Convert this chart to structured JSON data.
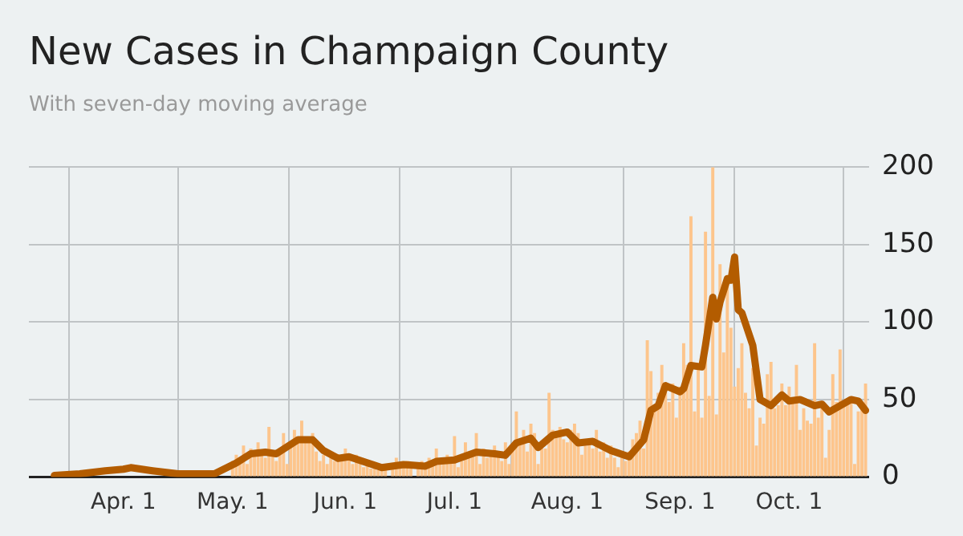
{
  "chart_data": {
    "type": "bar",
    "title": "New Cases in Champaign County",
    "subtitle": "With seven-day moving average",
    "x": [
      "--05-01",
      "--05-02",
      "--05-03",
      "--05-04",
      "--05-05",
      "--05-06",
      "--05-07",
      "--05-08",
      "--05-09",
      "--05-10",
      "--05-11",
      "--05-12",
      "--05-13",
      "--05-14",
      "--05-15",
      "--05-16",
      "--05-17",
      "--05-18",
      "--05-19",
      "--05-20",
      "--05-21",
      "--05-22",
      "--05-23",
      "--05-24",
      "--05-25",
      "--05-26",
      "--05-27",
      "--05-28",
      "--05-29",
      "--05-30",
      "--05-31",
      "--06-01",
      "--06-02",
      "--06-03",
      "--06-04",
      "--06-05",
      "--06-06",
      "--06-07",
      "--06-08",
      "--06-09",
      "--06-10",
      "--06-11",
      "--06-12",
      "--06-13",
      "--06-14",
      "--06-15",
      "--06-16",
      "--06-17",
      "--06-18",
      "--06-19",
      "--06-20",
      "--06-21",
      "--06-22",
      "--06-23",
      "--06-24",
      "--06-25",
      "--06-26",
      "--06-27",
      "--06-28",
      "--06-29",
      "--06-30",
      "--07-01",
      "--07-02",
      "--07-03",
      "--07-04",
      "--07-05",
      "--07-06",
      "--07-07",
      "--07-08",
      "--07-09",
      "--07-10",
      "--07-11",
      "--07-12",
      "--07-13",
      "--07-14",
      "--07-15",
      "--07-16",
      "--07-17",
      "--07-18",
      "--07-19",
      "--07-20",
      "--07-21",
      "--07-22",
      "--07-23",
      "--07-24",
      "--07-25",
      "--07-26",
      "--07-27",
      "--07-28",
      "--07-29",
      "--07-30",
      "--07-31",
      "--08-01",
      "--08-02",
      "--08-03",
      "--08-04",
      "--08-05",
      "--08-06",
      "--08-07",
      "--08-08",
      "--08-09",
      "--08-10",
      "--08-11",
      "--08-12",
      "--08-13",
      "--08-14",
      "--08-15",
      "--08-16",
      "--08-17",
      "--08-18",
      "--08-19",
      "--08-20",
      "--08-21",
      "--08-22",
      "--08-23",
      "--08-24",
      "--08-25",
      "--08-26",
      "--08-27",
      "--08-28",
      "--08-29",
      "--08-30",
      "--08-31",
      "--09-01",
      "--09-02",
      "--09-03",
      "--09-04",
      "--09-05",
      "--09-06",
      "--09-07",
      "--09-08",
      "--09-09",
      "--09-10",
      "--09-11",
      "--09-12",
      "--09-13",
      "--09-14",
      "--09-15",
      "--09-16",
      "--09-17",
      "--09-18",
      "--09-19",
      "--09-20",
      "--09-21",
      "--09-22",
      "--09-23",
      "--09-24",
      "--09-25",
      "--09-26",
      "--09-27",
      "--09-28",
      "--09-29",
      "--09-30",
      "--10-01",
      "--10-02",
      "--10-03",
      "--10-04",
      "--10-05",
      "--10-06",
      "--10-07",
      "--10-08",
      "--10-09",
      "--10-10",
      "--10-11",
      "--10-12",
      "--10-13",
      "--10-14",
      "--10-15",
      "--10-16",
      "--10-17",
      "--10-18",
      "--10-19",
      "--10-20",
      "--10-21",
      "--10-22"
    ],
    "series": [
      {
        "color": "#fdc58c",
        "values": [
          10,
          14,
          12,
          20,
          8,
          18,
          14,
          22,
          15,
          12,
          32,
          16,
          10,
          18,
          28,
          8,
          20,
          30,
          24,
          36,
          22,
          24,
          28,
          16,
          10,
          14,
          8,
          12,
          10,
          14,
          12,
          18,
          11,
          8,
          14,
          10,
          6,
          8,
          5,
          9,
          4,
          6,
          5,
          null,
          7,
          12,
          6,
          9,
          10,
          6,
          null,
          5,
          10,
          7,
          12,
          9,
          18,
          10,
          8,
          14,
          12,
          26,
          6,
          10,
          22,
          14,
          16,
          28,
          8,
          18,
          12,
          14,
          20,
          16,
          10,
          22,
          8,
          18,
          42,
          24,
          30,
          16,
          34,
          28,
          8,
          20,
          18,
          54,
          30,
          26,
          32,
          24,
          22,
          30,
          34,
          28,
          14,
          20,
          24,
          18,
          30,
          16,
          22,
          12,
          20,
          12,
          6,
          14,
          10,
          16,
          24,
          28,
          36,
          18,
          88,
          68,
          42,
          54,
          72,
          54,
          48,
          60,
          38,
          58,
          86,
          72,
          168,
          42,
          70,
          38,
          158,
          52,
          200,
          40,
          137,
          80,
          130,
          96,
          58,
          70,
          86,
          54,
          44,
          70,
          20,
          38,
          34,
          66,
          74,
          44,
          46,
          60,
          46,
          58,
          50,
          72,
          30,
          44,
          36,
          34,
          86,
          38,
          44,
          12,
          30,
          66,
          48,
          82,
          46,
          50,
          48,
          8,
          42,
          44,
          60
        ]
      },
      {
        "type": "line",
        "color": "#b35c00",
        "x": [
          "--03-13",
          "--03-20",
          "--03-27",
          "--04-01",
          "--04-03",
          "--04-09",
          "--04-16",
          "--04-26",
          "--05-02",
          "--05-06",
          "--05-10",
          "--05-13",
          "--05-19",
          "--05-23",
          "--05-26",
          "--05-30",
          "--06-02",
          "--06-11",
          "--06-17",
          "--06-23",
          "--06-26",
          "--07-01",
          "--07-07",
          "--07-12",
          "--07-15",
          "--07-18",
          "--07-22",
          "--07-24",
          "--07-28",
          "--08-01",
          "--08-04",
          "--08-08",
          "--08-13",
          "--08-18",
          "--08-22",
          "--08-24",
          "--08-26",
          "--08-28",
          "--09-01",
          "--09-02",
          "--09-04",
          "--09-07",
          "--09-08",
          "--09-10",
          "--09-11",
          "--09-12",
          "--09-14",
          "--09-15",
          "--09-16",
          "--09-17",
          "--09-18",
          "--09-21",
          "--09-23",
          "--09-26",
          "--09-29",
          "--10-01",
          "--10-04",
          "--10-08",
          "--10-10",
          "--10-12",
          "--10-15",
          "--10-18",
          "--10-20",
          "--10-22"
        ],
        "values": [
          1,
          2,
          4,
          5,
          6,
          4,
          2,
          2,
          9,
          15,
          16,
          15,
          24,
          24,
          17,
          12,
          13,
          6,
          8,
          7,
          10,
          11,
          16,
          15,
          14,
          22,
          25,
          19,
          27,
          29,
          22,
          23,
          17,
          13,
          24,
          43,
          46,
          59,
          55,
          57,
          72,
          71,
          85,
          116,
          102,
          113,
          128,
          127,
          142,
          108,
          106,
          85,
          50,
          46,
          53,
          49,
          50,
          46,
          47,
          42,
          46,
          50,
          49,
          43
        ]
      }
    ],
    "xlim": [
      "--03-06",
      "--10-23"
    ],
    "xticks": [
      {
        "value": "--04-01",
        "label": "Apr. 1"
      },
      {
        "value": "--05-01",
        "label": "May. 1"
      },
      {
        "value": "--06-01",
        "label": "Jun. 1"
      },
      {
        "value": "--07-01",
        "label": "Jul. 1"
      },
      {
        "value": "--08-01",
        "label": "Aug. 1"
      },
      {
        "value": "--09-01",
        "label": "Sep. 1"
      },
      {
        "value": "--10-01",
        "label": "Oct. 1"
      }
    ],
    "ylim": [
      0,
      200
    ],
    "yticks": [
      0,
      50,
      100,
      150,
      200
    ],
    "grid": true,
    "legend": false,
    "marker": "none",
    "line_style": "solid"
  }
}
